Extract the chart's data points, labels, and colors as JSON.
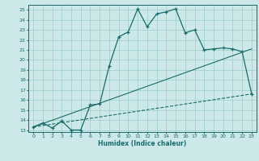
{
  "title": "",
  "xlabel": "Humidex (Indice chaleur)",
  "bg_color": "#cce8e8",
  "line_color": "#1a6b6b",
  "grid_color": "#99cccc",
  "xlim": [
    -0.5,
    23.5
  ],
  "ylim": [
    12.8,
    25.5
  ],
  "xticks": [
    0,
    1,
    2,
    3,
    4,
    5,
    6,
    7,
    8,
    9,
    10,
    11,
    12,
    13,
    14,
    15,
    16,
    17,
    18,
    19,
    20,
    21,
    22,
    23
  ],
  "yticks": [
    13,
    14,
    15,
    16,
    17,
    18,
    19,
    20,
    21,
    22,
    23,
    24,
    25
  ],
  "line1_x": [
    0,
    1,
    2,
    3,
    4,
    5,
    6,
    7,
    8,
    9,
    10,
    11,
    12,
    13,
    14,
    15,
    16,
    17,
    18,
    19,
    20,
    21,
    22,
    23
  ],
  "line1_y": [
    13.3,
    13.7,
    13.2,
    13.9,
    13.0,
    13.0,
    15.5,
    15.6,
    19.4,
    22.3,
    22.8,
    25.1,
    23.3,
    24.6,
    24.8,
    25.1,
    22.7,
    23.0,
    21.0,
    21.1,
    21.2,
    21.1,
    20.8,
    16.6
  ],
  "line2_x": [
    0,
    23
  ],
  "line2_y": [
    13.3,
    16.6
  ],
  "line3_x": [
    0,
    23
  ],
  "line3_y": [
    13.3,
    21.1
  ]
}
